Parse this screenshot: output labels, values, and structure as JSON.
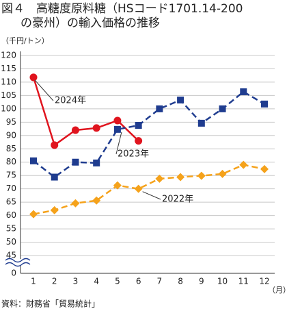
{
  "chart_data": {
    "type": "line",
    "title_lines": [
      "図４　高糖度原料糖（HSコード1701.14-200",
      "の豪州）の輸入価格の推移"
    ],
    "y_unit": "（千円/トン）",
    "x_unit": "（月）",
    "source": "資料：財務省「貿易統計」",
    "categories": [
      "1",
      "2",
      "3",
      "4",
      "5",
      "6",
      "7",
      "8",
      "9",
      "10",
      "11",
      "12"
    ],
    "series": [
      {
        "name": "2024年",
        "color": "#e0141e",
        "marker": "circle",
        "dash": false,
        "values": [
          111.8,
          86.4,
          92,
          92.8,
          95.6,
          88,
          null,
          null,
          null,
          null,
          null,
          null
        ]
      },
      {
        "name": "2023年",
        "color": "#1f3c8f",
        "marker": "square",
        "dash": true,
        "values": [
          80.5,
          74.4,
          80,
          79.7,
          92.3,
          93.8,
          100,
          103.3,
          94.6,
          100,
          106.4,
          101.8
        ]
      },
      {
        "name": "2022年",
        "color": "#f5a21b",
        "marker": "diamond",
        "dash": true,
        "values": [
          60.5,
          62,
          64.6,
          65.6,
          71.3,
          70,
          73.8,
          74.4,
          74.9,
          75.6,
          79,
          77.4
        ]
      }
    ],
    "ylim": [
      0,
      120
    ],
    "yticks": [
      0,
      45,
      50,
      55,
      60,
      65,
      70,
      75,
      80,
      85,
      90,
      95,
      100,
      105,
      110,
      115,
      120
    ],
    "axis_break": true,
    "grid": true
  }
}
